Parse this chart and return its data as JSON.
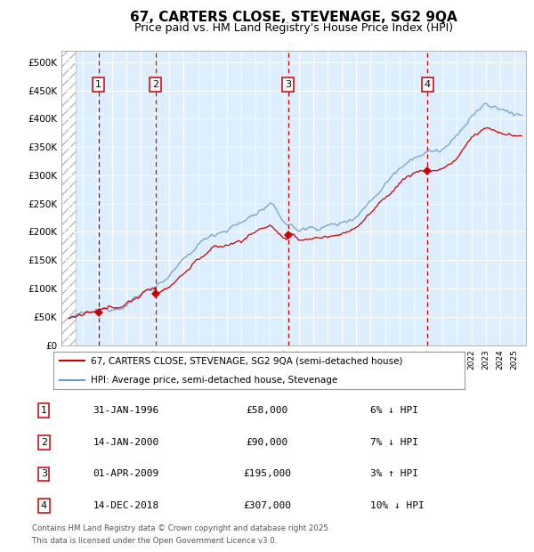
{
  "title": "67, CARTERS CLOSE, STEVENAGE, SG2 9QA",
  "subtitle": "Price paid vs. HM Land Registry's House Price Index (HPI)",
  "legend_line1": "67, CARTERS CLOSE, STEVENAGE, SG2 9QA (semi-detached house)",
  "legend_line2": "HPI: Average price, semi-detached house, Stevenage",
  "footer1": "Contains HM Land Registry data © Crown copyright and database right 2025.",
  "footer2": "This data is licensed under the Open Government Licence v3.0.",
  "table": [
    {
      "num": "1",
      "date": "31-JAN-1996",
      "price": "£58,000",
      "hpi": "6% ↓ HPI"
    },
    {
      "num": "2",
      "date": "14-JAN-2000",
      "price": "£90,000",
      "hpi": "7% ↓ HPI"
    },
    {
      "num": "3",
      "date": "01-APR-2009",
      "price": "£195,000",
      "hpi": "3% ↑ HPI"
    },
    {
      "num": "4",
      "date": "14-DEC-2018",
      "price": "£307,000",
      "hpi": "10% ↓ HPI"
    }
  ],
  "sale_dates_num": [
    1996.08,
    2000.04,
    2009.25,
    2018.96
  ],
  "sale_prices": [
    58000,
    90000,
    195000,
    307000
  ],
  "sale_labels": [
    "1",
    "2",
    "3",
    "4"
  ],
  "hpi_color": "#6699cc",
  "price_color": "#cc0000",
  "marker_color": "#cc0000",
  "dashed_line_color": "#cc0000",
  "box_color": "#cc0000",
  "ylim": [
    0,
    520000
  ],
  "yticks": [
    0,
    50000,
    100000,
    150000,
    200000,
    250000,
    300000,
    350000,
    400000,
    450000,
    500000
  ],
  "ytick_labels": [
    "£0",
    "£50K",
    "£100K",
    "£150K",
    "£200K",
    "£250K",
    "£300K",
    "£350K",
    "£400K",
    "£450K",
    "£500K"
  ],
  "xlim_start": 1993.5,
  "xlim_end": 2025.8,
  "hatch_end": 1994.5,
  "plot_bg": "#ddeeff",
  "grid_color": "#ffffff",
  "title_fontsize": 11,
  "subtitle_fontsize": 9
}
